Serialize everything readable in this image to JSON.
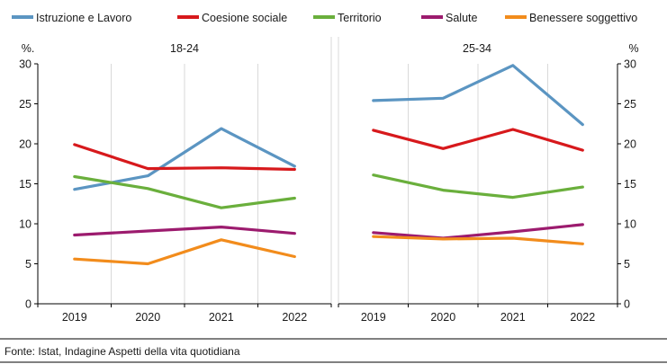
{
  "source": "Fonte: Istat, Indagine Aspetti della vita quotidiana",
  "chart_data": {
    "type": "line",
    "grid": "vertical",
    "legend": "top",
    "legend_entries": [
      {
        "name": "Istruzione e Lavoro",
        "color": "#5b95c2"
      },
      {
        "name": "Coesione sociale",
        "color": "#d7191c"
      },
      {
        "name": "Territorio",
        "color": "#6aaf3c"
      },
      {
        "name": "Salute",
        "color": "#9c1b6e"
      },
      {
        "name": "Benessere soggettivo",
        "color": "#f28c1c"
      }
    ],
    "panels": [
      {
        "title": "18-24",
        "ylabel": "%.",
        "x": [
          "2019",
          "2020",
          "2021",
          "2022"
        ],
        "ylim": [
          0,
          30
        ],
        "yticks": [
          0,
          5,
          10,
          15,
          20,
          25,
          30
        ],
        "series": [
          {
            "name": "Istruzione e Lavoro",
            "values": [
              14.3,
              16.0,
              21.9,
              17.2
            ]
          },
          {
            "name": "Coesione sociale",
            "values": [
              19.9,
              16.9,
              17.0,
              16.8
            ]
          },
          {
            "name": "Territorio",
            "values": [
              15.9,
              14.4,
              12.0,
              13.2
            ]
          },
          {
            "name": "Salute",
            "values": [
              8.6,
              9.1,
              9.6,
              8.8
            ]
          },
          {
            "name": "Benessere soggettivo",
            "values": [
              5.6,
              5.0,
              8.0,
              5.9
            ]
          }
        ]
      },
      {
        "title": "25-34",
        "ylabel": "%",
        "x": [
          "2019",
          "2020",
          "2021",
          "2022"
        ],
        "ylim": [
          0,
          30
        ],
        "yticks": [
          0,
          5,
          10,
          15,
          20,
          25,
          30
        ],
        "series": [
          {
            "name": "Istruzione e Lavoro",
            "values": [
              25.4,
              25.7,
              29.8,
              22.4
            ]
          },
          {
            "name": "Coesione sociale",
            "values": [
              21.7,
              19.4,
              21.8,
              19.2
            ]
          },
          {
            "name": "Territorio",
            "values": [
              16.1,
              14.2,
              13.3,
              14.6
            ]
          },
          {
            "name": "Salute",
            "values": [
              8.9,
              8.2,
              9.0,
              9.9
            ]
          },
          {
            "name": "Benessere soggettivo",
            "values": [
              8.4,
              8.1,
              8.2,
              7.5
            ]
          }
        ]
      }
    ]
  }
}
